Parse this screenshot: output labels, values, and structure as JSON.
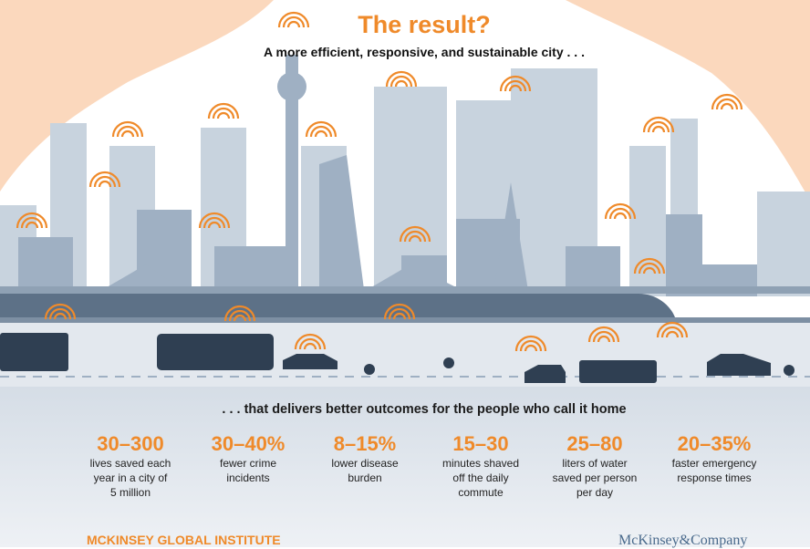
{
  "header": {
    "title": "The result?",
    "subtitle": "A more efficient, responsive, and sustainable city . . ."
  },
  "tagline": ". . . that delivers better outcomes for the people who call it home",
  "stats": [
    {
      "value": "30–300",
      "label": [
        "lives saved each",
        "year in a city of",
        "5 million"
      ]
    },
    {
      "value": "30–40%",
      "label": [
        "fewer crime",
        "incidents"
      ]
    },
    {
      "value": "8–15%",
      "label": [
        "lower disease",
        "burden"
      ]
    },
    {
      "value": "15–30",
      "label": [
        "minutes shaved",
        "off the daily",
        "commute"
      ]
    },
    {
      "value": "25–80",
      "label": [
        "liters of water",
        "saved per person",
        "per day"
      ]
    },
    {
      "value": "20–35%",
      "label": [
        "faster emergency",
        "response times"
      ]
    }
  ],
  "footer": {
    "left": "MCKINSEY GLOBAL INSTITUTE",
    "right": "McKinsey&Company"
  }
}
